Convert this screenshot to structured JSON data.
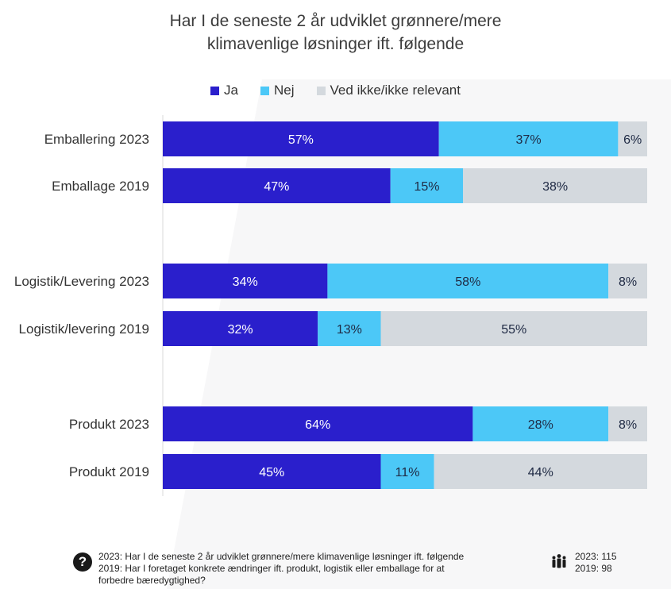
{
  "title_lines": [
    "Har I de seneste 2 år udviklet grønnere/mere",
    "klimavenlige løsninger ift. følgende"
  ],
  "legend": [
    {
      "label": "Ja",
      "color": "#2a1fcc"
    },
    {
      "label": "Nej",
      "color": "#4cc8f7"
    },
    {
      "label": "Ved ikke/ikke relevant",
      "color": "#d4d9de"
    }
  ],
  "chart_data": {
    "type": "bar",
    "orientation": "horizontal",
    "stacked": true,
    "categories": [
      "Emballering 2023",
      "Emballage 2019",
      "Logistik/Levering 2023",
      "Logistik/levering 2019",
      "Produkt 2023",
      "Produkt 2019"
    ],
    "series": [
      {
        "name": "Ja",
        "values": [
          57,
          47,
          34,
          32,
          64,
          45
        ]
      },
      {
        "name": "Nej",
        "values": [
          37,
          15,
          58,
          13,
          28,
          11
        ]
      },
      {
        "name": "Ved ikke/ikke relevant",
        "values": [
          6,
          38,
          8,
          55,
          8,
          44
        ]
      }
    ],
    "unit": "%",
    "xlim": [
      0,
      100
    ],
    "legend_position": "top",
    "grid": false
  },
  "footer": {
    "question_icon": "question-circle-icon",
    "lines": [
      "2023: Har I de seneste 2 år udviklet grønnere/mere klimavenlige løsninger ift. følgende",
      "2019: Har I foretaget konkrete ændringer ift. produkt, logistik eller emballage for at",
      "forbedre bæredygtighed?"
    ],
    "people_icon": "people-icon",
    "counts": [
      "2023: 115",
      "2019: 98"
    ]
  }
}
